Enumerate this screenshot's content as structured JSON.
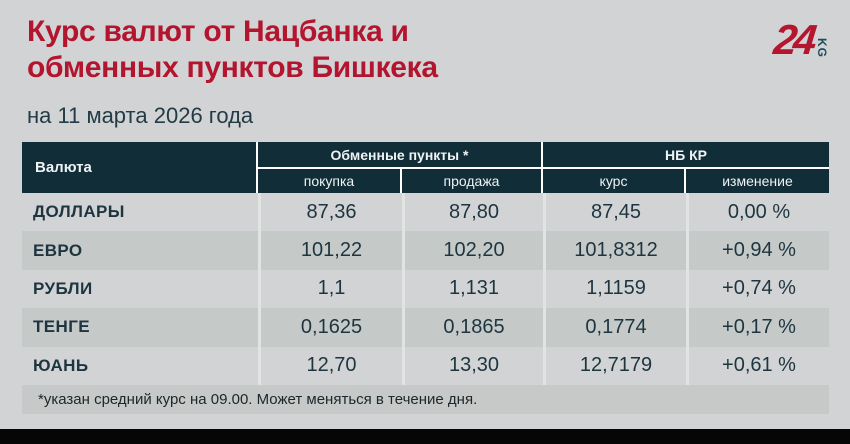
{
  "header": {
    "title_line1": "Курс валют от Нацбанка и",
    "title_line2": "обменных пунктов Бишкека",
    "date": "на 11 марта 2026 года"
  },
  "logo": {
    "number": "24",
    "suffix": "KG"
  },
  "table": {
    "currency_header": "Валюта",
    "groups": [
      {
        "label": "Обменные пункты *",
        "subcolumns": [
          "покупка",
          "продажа"
        ]
      },
      {
        "label": "НБ КР",
        "subcolumns": [
          "курс",
          "изменение"
        ]
      }
    ],
    "rows": [
      {
        "name": "ДОЛЛАРЫ",
        "buy": "87,36",
        "sell": "87,80",
        "rate": "87,45",
        "change": "0,00 %"
      },
      {
        "name": "ЕВРО",
        "buy": "101,22",
        "sell": "102,20",
        "rate": "101,8312",
        "change": "+0,94 %"
      },
      {
        "name": "РУБЛИ",
        "buy": "1,1",
        "sell": "1,131",
        "rate": "1,1159",
        "change": "+0,74 %"
      },
      {
        "name": "ТЕНГЕ",
        "buy": "0,1625",
        "sell": "0,1865",
        "rate": "0,1774",
        "change": "+0,17 %"
      },
      {
        "name": "ЮАНЬ",
        "buy": "12,70",
        "sell": "13,30",
        "rate": "12,7179",
        "change": "+0,61 %"
      }
    ]
  },
  "footnote": "*указан средний курс на 09.00. Может меняться в течение дня.",
  "colors": {
    "accent_red": "#b3152f",
    "header_bg": "#112d37",
    "text_dark": "#1e3540",
    "row_light": "#d1d3d4",
    "row_dark": "#c5c9c8"
  }
}
